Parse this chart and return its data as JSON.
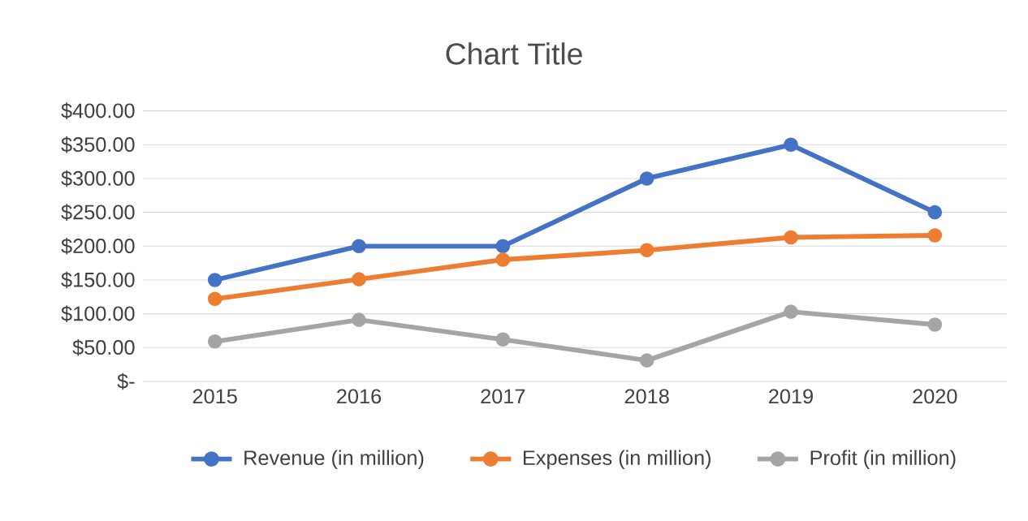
{
  "chart_data": {
    "type": "line",
    "title": "Chart Title",
    "categories": [
      "2015",
      "2016",
      "2017",
      "2018",
      "2019",
      "2020"
    ],
    "series": [
      {
        "name": "Revenue (in million)",
        "color": "#4472c4",
        "values": [
          150,
          200,
          200,
          300,
          350,
          250
        ]
      },
      {
        "name": "Expenses (in million)",
        "color": "#ed7d31",
        "values": [
          122,
          151,
          180,
          194,
          213,
          216
        ]
      },
      {
        "name": "Profit (in million)",
        "color": "#a5a5a5",
        "values": [
          59,
          91,
          62,
          31,
          103,
          84
        ]
      }
    ],
    "ylim": [
      0,
      400
    ],
    "yticks": [
      {
        "value": 0,
        "label": "$-"
      },
      {
        "value": 50,
        "label": "$50.00"
      },
      {
        "value": 100,
        "label": "$100.00"
      },
      {
        "value": 150,
        "label": "$150.00"
      },
      {
        "value": 200,
        "label": "$200.00"
      },
      {
        "value": 250,
        "label": "$250.00"
      },
      {
        "value": 300,
        "label": "$300.00"
      },
      {
        "value": 350,
        "label": "$350.00"
      },
      {
        "value": 400,
        "label": "$400.00"
      }
    ],
    "grid": "y",
    "legend": "bottom",
    "marker": "circle",
    "line_style": "solid"
  }
}
